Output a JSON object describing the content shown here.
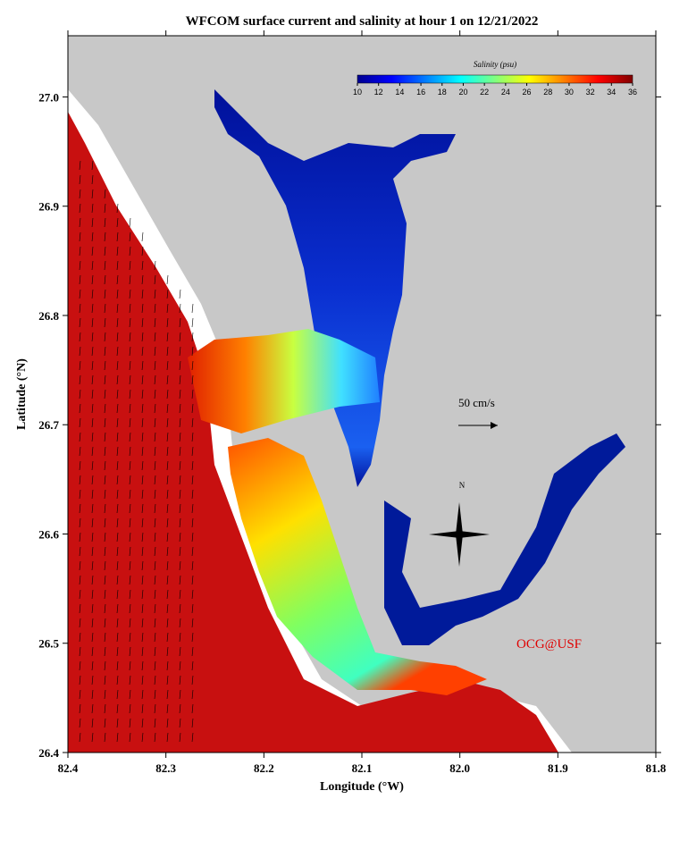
{
  "chart_data": {
    "type": "map",
    "title": "WFCOM surface current and salinity at hour 1 on 12/21/2022",
    "x_label": "Longitude (°W)",
    "y_label": "Latitude (°N)",
    "xlim": [
      82.4,
      81.8
    ],
    "xticks": [
      82.4,
      82.3,
      82.2,
      82.1,
      {
        "value": 82,
        "label": "82.0"
      },
      81.9,
      81.8
    ],
    "ylim": [
      26.4,
      27.056
    ],
    "yticks": [
      26.4,
      26.5,
      26.6,
      26.7,
      26.8,
      26.9,
      {
        "value": 27,
        "label": "27.0"
      }
    ],
    "colorbar": {
      "title": "Salinity (psu)",
      "range": [
        10,
        36
      ],
      "ticks": [
        10,
        12,
        14,
        16,
        18,
        20,
        22,
        24,
        26,
        28,
        30,
        32,
        34,
        36
      ],
      "colors": [
        "#00008f",
        "#0000ff",
        "#0080ff",
        "#00ffff",
        "#80ff80",
        "#ffff00",
        "#ff8000",
        "#ff0000",
        "#800000"
      ]
    },
    "annotations": [
      "50 cm/s",
      "OCG@USF",
      "N"
    ]
  }
}
